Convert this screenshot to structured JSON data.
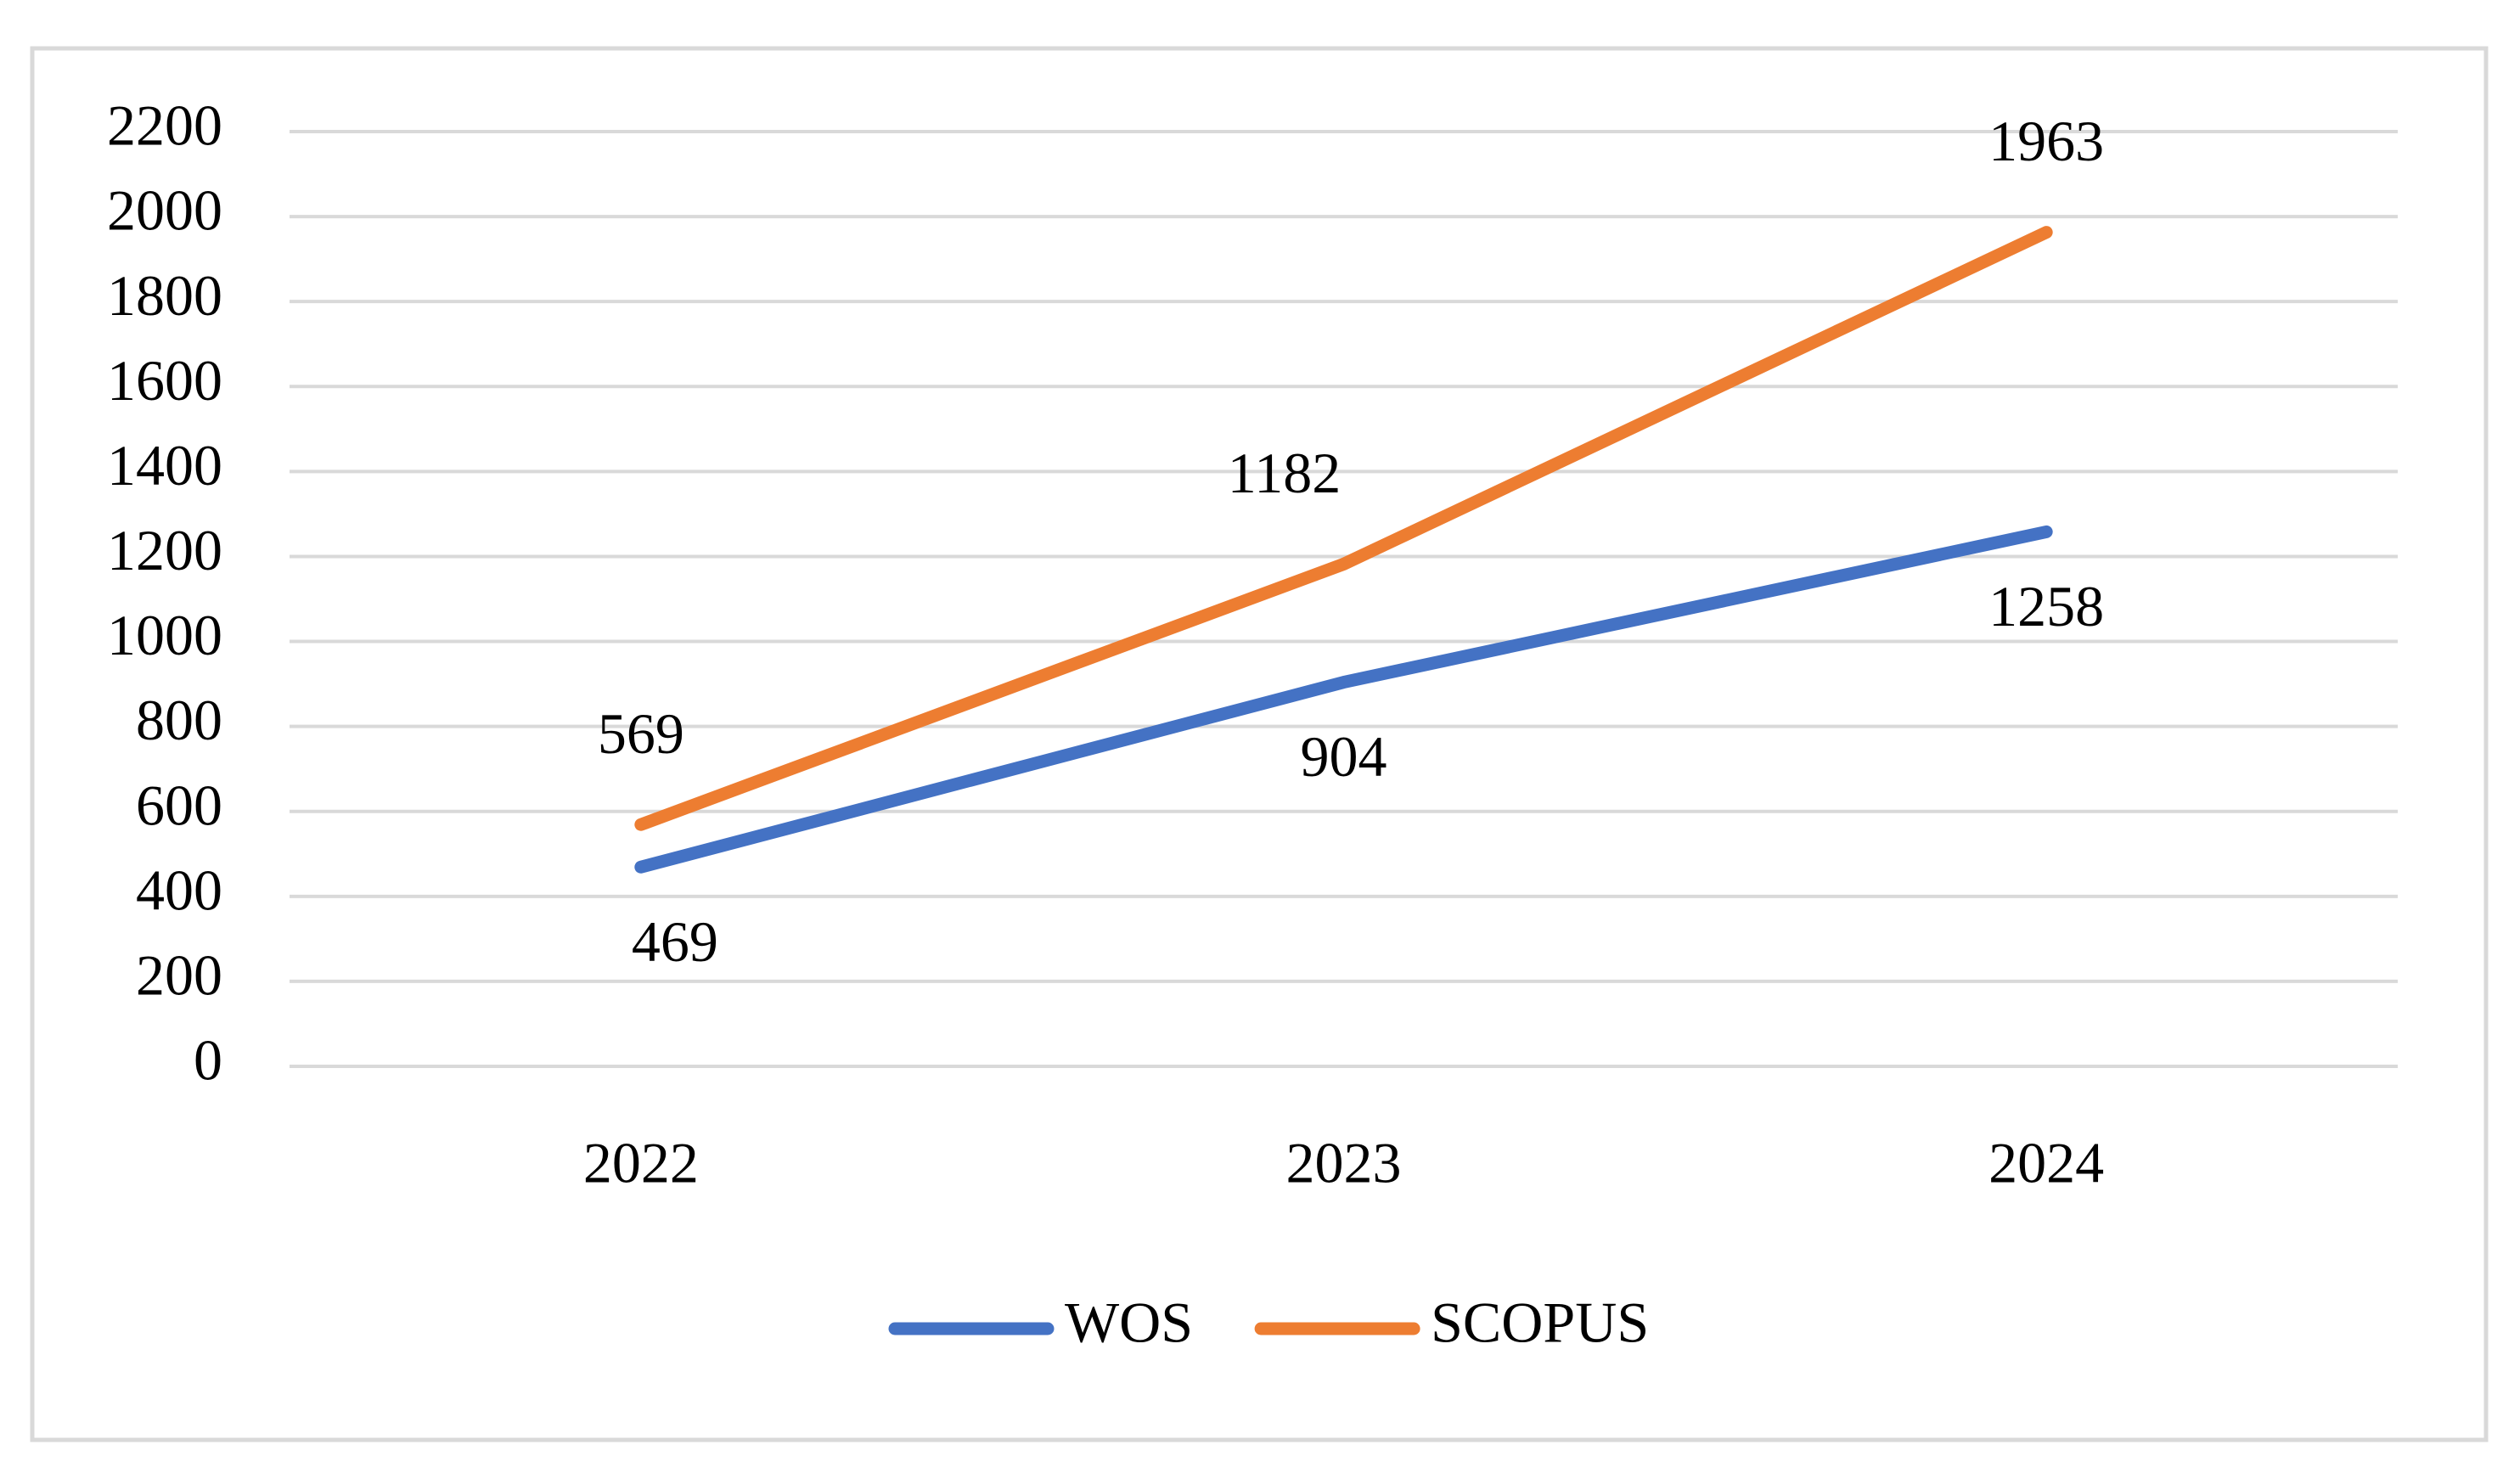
{
  "chart_data": {
    "type": "line",
    "categories": [
      "2022",
      "2023",
      "2024"
    ],
    "series": [
      {
        "name": "WOS",
        "color": "#4472c4",
        "values": [
          469,
          904,
          1258
        ]
      },
      {
        "name": "SCOPUS",
        "color": "#ed7d31",
        "values": [
          569,
          1182,
          1963
        ]
      }
    ],
    "ylim": [
      0,
      2200
    ],
    "yticks": [
      0,
      200,
      400,
      600,
      800,
      1000,
      1200,
      1400,
      1600,
      1800,
      2000,
      2200
    ],
    "grid": true,
    "legend": "bottom"
  }
}
